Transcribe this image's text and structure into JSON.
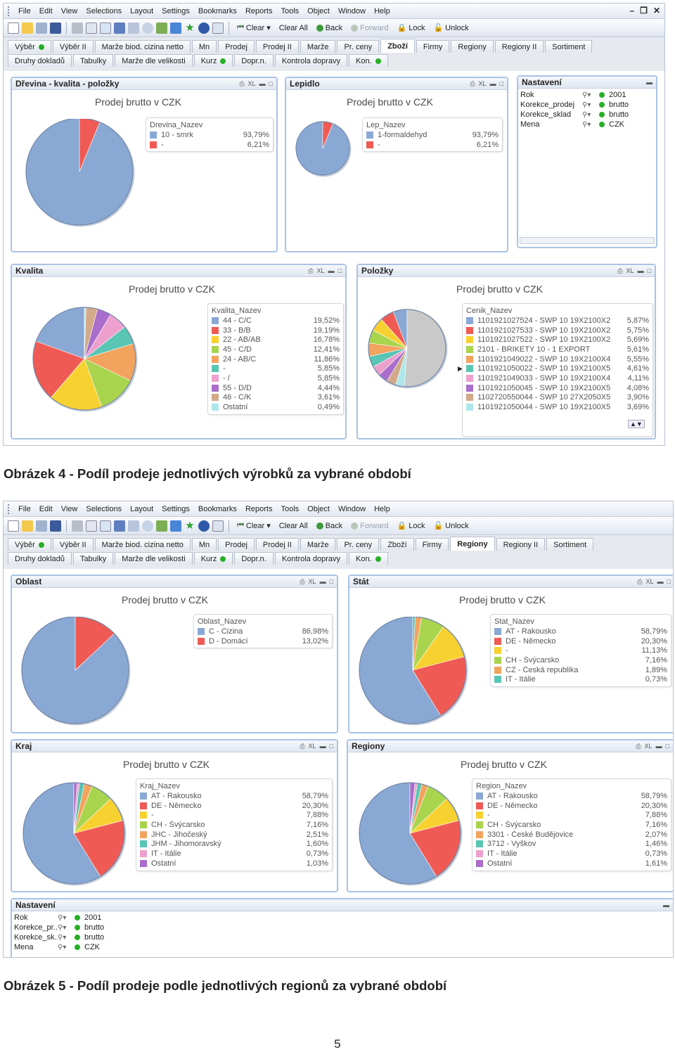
{
  "menu": [
    "File",
    "Edit",
    "View",
    "Selections",
    "Layout",
    "Settings",
    "Bookmarks",
    "Reports",
    "Tools",
    "Object",
    "Window",
    "Help"
  ],
  "toolbar": {
    "clear": "Clear",
    "clear_all": "Clear All",
    "back": "Back",
    "forward": "Forward",
    "lock": "Lock",
    "unlock": "Unlock"
  },
  "tabs_row1": [
    "Výběr",
    "Výběr II",
    "Marže biod. cizina netto",
    "Mn",
    "Prodej",
    "Prodej II",
    "Marže",
    "Pr. ceny",
    "Zboží",
    "Firmy",
    "Regiony",
    "Regiony II",
    "Sortiment"
  ],
  "tabs_row2": [
    "Druhy dokladů",
    "Tabulky",
    "Marže dle velikosti",
    "Kurz",
    "Dopr.n.",
    "Kontrola dopravy",
    "Kon."
  ],
  "chart_title": "Prodej brutto v CZK",
  "colors": {
    "blue": "#8aa8d4",
    "red": "#f05a55",
    "yellow": "#f7d12f",
    "lime": "#a9d44d",
    "orange": "#f2a35e",
    "teal": "#59c5b4",
    "pink": "#eda0cd",
    "purple": "#a96ecb",
    "tan": "#d2a989",
    "cyan": "#aee7ea",
    "grey": "#c9c9c9"
  },
  "fig4": {
    "active_tab": "Zboží",
    "caption": "Obrázek 4 - Podíl prodeje jednotlivých výrobků za vybrané období",
    "drevina": {
      "caption": "Dřevina - kvalita - položky",
      "field": "Drevina_Nazev",
      "rows": [
        {
          "label": "10 - smrk",
          "value": "93,79%"
        },
        {
          "label": "-",
          "value": "6,21%"
        }
      ]
    },
    "lepidlo": {
      "caption": "Lepidlo",
      "field": "Lep_Nazev",
      "rows": [
        {
          "label": "1-formaldehyd",
          "value": "93,79%"
        },
        {
          "label": "-",
          "value": "6,21%"
        }
      ]
    },
    "nastaveni": {
      "caption": "Nastavení",
      "rows": [
        {
          "label": "Rok",
          "value": "2001"
        },
        {
          "label": "Korekce_prodej",
          "value": "brutto"
        },
        {
          "label": "Korekce_sklad",
          "value": "brutto"
        },
        {
          "label": "Mena",
          "value": "CZK"
        }
      ]
    },
    "kvalita": {
      "caption": "Kvalita",
      "field": "Kvalita_Nazev",
      "rows": [
        {
          "label": "44 - C/C",
          "value": "19,52%"
        },
        {
          "label": "33 - B/B",
          "value": "19,19%"
        },
        {
          "label": "22 - AB/AB",
          "value": "16,78%"
        },
        {
          "label": "45 - C/D",
          "value": "12,41%"
        },
        {
          "label": "24 - AB/C",
          "value": "11,86%"
        },
        {
          "label": "-",
          "value": "5,85%"
        },
        {
          "label": "- /",
          "value": "5,85%"
        },
        {
          "label": "55 - D/D",
          "value": "4,44%"
        },
        {
          "label": "46 - C/K",
          "value": "3,61%"
        },
        {
          "label": "Ostatní",
          "value": "0,49%"
        }
      ]
    },
    "polozky": {
      "caption": "Položky",
      "field": "Cenik_Nazev",
      "rows": [
        {
          "label": "1101921027524 - SWP 10 19X2100X2",
          "value": "5,87%"
        },
        {
          "label": "1101921027533 - SWP 10 19X2100X2",
          "value": "5,75%"
        },
        {
          "label": "1101921027522 - SWP 10 19X2100X2",
          "value": "5,69%"
        },
        {
          "label": "2101 - BRIKETY 10 - 1 EXPORT",
          "value": "5,61%"
        },
        {
          "label": "1101921049022 - SWP 10 19X2100X4",
          "value": "5,55%"
        },
        {
          "label": "1101921050022 - SWP 10 19X2100X5",
          "value": "4,61%"
        },
        {
          "label": "1101921049033 - SWP 10 19X2100X4",
          "value": "4,11%"
        },
        {
          "label": "1101921050045 - SWP 10 19X2100X5",
          "value": "4,08%"
        },
        {
          "label": "1102720550044 - SWP 10 27X2050X5",
          "value": "3,90%"
        },
        {
          "label": "1101921050044 - SWP 10 19X2100X5",
          "value": "3,69%"
        }
      ]
    }
  },
  "fig5": {
    "active_tab": "Regiony",
    "caption": "Obrázek 5 - Podíl prodeje podle jednotlivých regionů za vybrané období",
    "oblast": {
      "caption": "Oblast",
      "field": "Oblast_Nazev",
      "rows": [
        {
          "label": "C - Cizina",
          "value": "86,98%"
        },
        {
          "label": "D - Domácí",
          "value": "13,02%"
        }
      ]
    },
    "stat": {
      "caption": "Stát",
      "field": "Stat_Nazev",
      "rows": [
        {
          "label": "AT - Rakousko",
          "value": "58,79%"
        },
        {
          "label": "DE - Německo",
          "value": "20,30%"
        },
        {
          "label": "-",
          "value": "11,13%"
        },
        {
          "label": "CH - Švýcarsko",
          "value": "7,16%"
        },
        {
          "label": "CZ - Česká republika",
          "value": "1,89%"
        },
        {
          "label": "IT - Itálie",
          "value": "0,73%"
        }
      ]
    },
    "kraj": {
      "caption": "Kraj",
      "field": "Kraj_Nazev",
      "rows": [
        {
          "label": "AT - Rakousko",
          "value": "58,79%"
        },
        {
          "label": "DE - Německo",
          "value": "20,30%"
        },
        {
          "label": "-",
          "value": "7,88%"
        },
        {
          "label": "CH - Švýcarsko",
          "value": "7,16%"
        },
        {
          "label": "JHC - Jihočeský",
          "value": "2,51%"
        },
        {
          "label": "JHM - Jihomoravský",
          "value": "1,60%"
        },
        {
          "label": "IT - Itálie",
          "value": "0,73%"
        },
        {
          "label": "Ostatní",
          "value": "1,03%"
        }
      ]
    },
    "regiony": {
      "caption": "Regiony",
      "field": "Region_Nazev",
      "rows": [
        {
          "label": "AT - Rakousko",
          "value": "58,79%"
        },
        {
          "label": "DE - Německo",
          "value": "20,30%"
        },
        {
          "label": "-",
          "value": "7,88%"
        },
        {
          "label": "CH - Švýcarsko",
          "value": "7,16%"
        },
        {
          "label": "3301 - České Budějovice",
          "value": "2,07%"
        },
        {
          "label": "3712 - Vyškov",
          "value": "1,46%"
        },
        {
          "label": "IT - Itálie",
          "value": "0,73%"
        },
        {
          "label": "Ostatní",
          "value": "1,61%"
        }
      ]
    },
    "nastaveni": {
      "caption": "Nastavení",
      "rows": [
        {
          "label": "Rok",
          "value": "2001"
        },
        {
          "label": "Korekce_pr...",
          "value": "brutto"
        },
        {
          "label": "Korekce_sk...",
          "value": "brutto"
        },
        {
          "label": "Mena",
          "value": "CZK"
        }
      ]
    }
  },
  "page_number": "5"
}
